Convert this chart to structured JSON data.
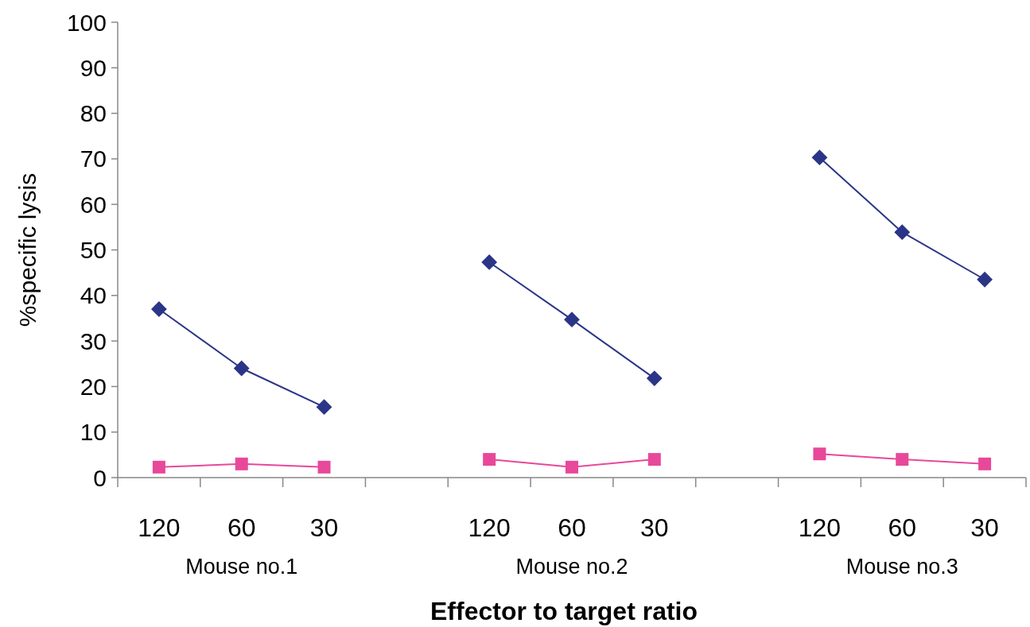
{
  "chart_data": {
    "type": "line",
    "xlabel": "Effector to target ratio",
    "ylabel": "%specific lysis",
    "categories": [
      "120",
      "60",
      "30",
      null,
      "120",
      "60",
      "30",
      null,
      "120",
      "60",
      "30"
    ],
    "series": [
      {
        "color": "#2b3587",
        "marker": "diamond",
        "values": [
          37,
          24,
          15.5,
          null,
          47.3,
          34.7,
          21.8,
          null,
          70.3,
          53.9,
          43.5
        ]
      },
      {
        "color": "#e8489a",
        "marker": "square",
        "values": [
          2.3,
          3,
          2.3,
          null,
          4,
          2.3,
          4,
          null,
          5.2,
          4,
          3
        ]
      }
    ],
    "ylim": [
      0,
      100
    ],
    "yticks": [
      0,
      10,
      20,
      30,
      40,
      50,
      60,
      70,
      80,
      90,
      100
    ],
    "grid": false,
    "annotations": [
      "Mouse no.1",
      "Mouse no.2",
      "Mouse no.3"
    ]
  }
}
